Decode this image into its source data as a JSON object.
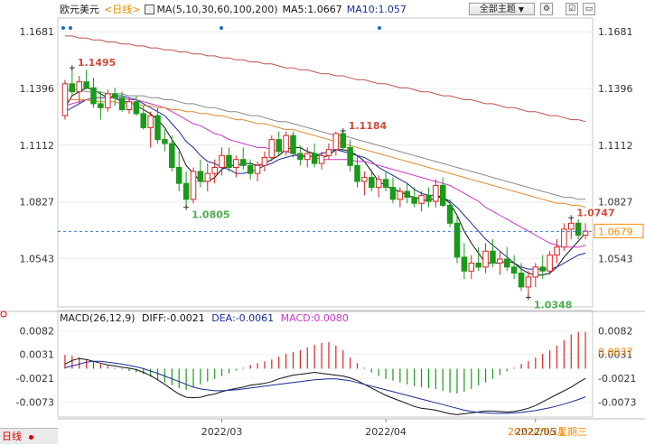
{
  "header": {
    "symbol": "欧元美元",
    "period_link": "<日线>",
    "ma_label": "MA(5,10,30,60,100,200)",
    "ma5": "MA5:1.0667",
    "ma10": "MA10:1.057",
    "theme_button": "全部主题",
    "theme_arrow": "▼"
  },
  "price_axis": {
    "ticks": [
      "1.1681",
      "1.1396",
      "1.1112",
      "1.0827",
      "1.0543"
    ],
    "current_price": "1.0679"
  },
  "annotations": {
    "high1": "1.1495",
    "high2": "1.1184",
    "low1": "1.0805",
    "low2": "1.0348",
    "high3": "1.0747"
  },
  "macd": {
    "label": "MACD(26,12,9)",
    "diff": "DIFF:-0.0021",
    "dea": "DEA:-0.0061",
    "macd": "MACD:0.0080",
    "ticks": [
      "0.0082",
      "0.0031",
      "-0.0021",
      "-0.0073"
    ],
    "right_value": "0.0037"
  },
  "xaxis": {
    "labels": [
      "2022/03",
      "2022/04",
      "2022/05"
    ],
    "cursor_date": "2022/05/11",
    "cursor_weekday": "星期三"
  },
  "bottom": {
    "period": "日线"
  },
  "colors": {
    "up": "#d22",
    "down": "#1a9a1a",
    "ma5": "#111111",
    "ma10": "#1a2a99",
    "ma30": "#cc33cc",
    "ma60": "#888888",
    "ma100": "#e08a2a",
    "ma200": "#c0504d",
    "accent": "#ff8a00"
  },
  "chart_data": {
    "type": "candlestick",
    "title": "",
    "ylim": [
      1.03,
      1.175
    ],
    "candles": [
      [
        1.126,
        1.144,
        1.124,
        1.142
      ],
      [
        1.142,
        1.15,
        1.136,
        1.138
      ],
      [
        1.138,
        1.146,
        1.132,
        1.143
      ],
      [
        1.143,
        1.149,
        1.139,
        1.14
      ],
      [
        1.14,
        1.145,
        1.13,
        1.132
      ],
      [
        1.132,
        1.138,
        1.124,
        1.13
      ],
      [
        1.13,
        1.139,
        1.128,
        1.137
      ],
      [
        1.137,
        1.14,
        1.131,
        1.135
      ],
      [
        1.135,
        1.138,
        1.128,
        1.129
      ],
      [
        1.129,
        1.135,
        1.127,
        1.133
      ],
      [
        1.133,
        1.136,
        1.126,
        1.127
      ],
      [
        1.127,
        1.131,
        1.119,
        1.12
      ],
      [
        1.12,
        1.128,
        1.11,
        1.126
      ],
      [
        1.126,
        1.13,
        1.112,
        1.114
      ],
      [
        1.114,
        1.119,
        1.108,
        1.112
      ],
      [
        1.112,
        1.116,
        1.098,
        1.1
      ],
      [
        1.1,
        1.108,
        1.088,
        1.092
      ],
      [
        1.092,
        1.098,
        1.08,
        1.084
      ],
      [
        1.084,
        1.1,
        1.082,
        1.098
      ],
      [
        1.098,
        1.104,
        1.09,
        1.093
      ],
      [
        1.093,
        1.102,
        1.088,
        1.097
      ],
      [
        1.097,
        1.104,
        1.092,
        1.1
      ],
      [
        1.1,
        1.11,
        1.096,
        1.106
      ],
      [
        1.106,
        1.11,
        1.098,
        1.1
      ],
      [
        1.1,
        1.106,
        1.095,
        1.104
      ],
      [
        1.104,
        1.11,
        1.099,
        1.101
      ],
      [
        1.101,
        1.104,
        1.094,
        1.097
      ],
      [
        1.097,
        1.103,
        1.093,
        1.101
      ],
      [
        1.101,
        1.108,
        1.098,
        1.105
      ],
      [
        1.105,
        1.116,
        1.103,
        1.114
      ],
      [
        1.114,
        1.118,
        1.106,
        1.108
      ],
      [
        1.108,
        1.118,
        1.106,
        1.116
      ],
      [
        1.116,
        1.118,
        1.105,
        1.107
      ],
      [
        1.107,
        1.111,
        1.101,
        1.104
      ],
      [
        1.104,
        1.11,
        1.1,
        1.107
      ],
      [
        1.107,
        1.112,
        1.1,
        1.102
      ],
      [
        1.102,
        1.108,
        1.099,
        1.106
      ],
      [
        1.106,
        1.112,
        1.104,
        1.109
      ],
      [
        1.109,
        1.118,
        1.106,
        1.117
      ],
      [
        1.117,
        1.1184,
        1.108,
        1.11
      ],
      [
        1.11,
        1.114,
        1.098,
        1.101
      ],
      [
        1.101,
        1.106,
        1.09,
        1.093
      ],
      [
        1.093,
        1.098,
        1.086,
        1.095
      ],
      [
        1.095,
        1.099,
        1.088,
        1.09
      ],
      [
        1.09,
        1.096,
        1.085,
        1.094
      ],
      [
        1.094,
        1.098,
        1.088,
        1.09
      ],
      [
        1.09,
        1.095,
        1.082,
        1.084
      ],
      [
        1.084,
        1.09,
        1.08,
        1.088
      ],
      [
        1.088,
        1.092,
        1.082,
        1.085
      ],
      [
        1.085,
        1.09,
        1.08,
        1.082
      ],
      [
        1.082,
        1.088,
        1.078,
        1.086
      ],
      [
        1.086,
        1.09,
        1.08,
        1.083
      ],
      [
        1.083,
        1.094,
        1.08,
        1.091
      ],
      [
        1.091,
        1.095,
        1.08,
        1.081
      ],
      [
        1.081,
        1.084,
        1.07,
        1.072
      ],
      [
        1.072,
        1.076,
        1.052,
        1.055
      ],
      [
        1.055,
        1.062,
        1.044,
        1.048
      ],
      [
        1.048,
        1.056,
        1.044,
        1.052
      ],
      [
        1.052,
        1.06,
        1.048,
        1.05
      ],
      [
        1.05,
        1.062,
        1.047,
        1.058
      ],
      [
        1.058,
        1.064,
        1.05,
        1.052
      ],
      [
        1.052,
        1.058,
        1.046,
        1.054
      ],
      [
        1.054,
        1.06,
        1.048,
        1.05
      ],
      [
        1.05,
        1.056,
        1.044,
        1.047
      ],
      [
        1.047,
        1.052,
        1.038,
        1.04
      ],
      [
        1.04,
        1.048,
        1.0348,
        1.045
      ],
      [
        1.045,
        1.052,
        1.04,
        1.05
      ],
      [
        1.05,
        1.056,
        1.044,
        1.048
      ],
      [
        1.048,
        1.058,
        1.046,
        1.056
      ],
      [
        1.056,
        1.064,
        1.052,
        1.06
      ],
      [
        1.06,
        1.072,
        1.058,
        1.069
      ],
      [
        1.069,
        1.0747,
        1.064,
        1.072
      ],
      [
        1.072,
        1.074,
        1.064,
        1.066
      ],
      [
        1.066,
        1.072,
        1.064,
        1.068
      ]
    ],
    "series": [
      {
        "name": "MA5",
        "values": [
          1.13,
          1.136,
          1.138,
          1.14,
          1.139,
          1.137,
          1.135,
          1.135,
          1.133,
          1.133,
          1.131,
          1.129,
          1.127,
          1.124,
          1.12,
          1.114,
          1.109,
          1.101,
          1.097,
          1.093,
          1.093,
          1.095,
          1.099,
          1.101,
          1.101,
          1.102,
          1.102,
          1.101,
          1.102,
          1.104,
          1.106,
          1.109,
          1.11,
          1.11,
          1.108,
          1.107,
          1.105,
          1.106,
          1.109,
          1.109,
          1.108,
          1.106,
          1.103,
          1.098,
          1.093,
          1.091,
          1.089,
          1.088,
          1.086,
          1.085,
          1.084,
          1.083,
          1.085,
          1.085,
          1.082,
          1.076,
          1.068,
          1.062,
          1.057,
          1.052,
          1.052,
          1.052,
          1.053,
          1.052,
          1.049,
          1.047,
          1.046,
          1.046,
          1.047,
          1.05,
          1.055,
          1.059,
          1.063,
          1.067
        ]
      },
      {
        "name": "MA10",
        "values": [
          1.128,
          1.13,
          1.132,
          1.134,
          1.135,
          1.135,
          1.135,
          1.136,
          1.136,
          1.135,
          1.134,
          1.132,
          1.13,
          1.128,
          1.126,
          1.122,
          1.118,
          1.113,
          1.11,
          1.106,
          1.103,
          1.102,
          1.1,
          1.099,
          1.097,
          1.097,
          1.098,
          1.099,
          1.101,
          1.102,
          1.104,
          1.105,
          1.106,
          1.106,
          1.105,
          1.106,
          1.107,
          1.108,
          1.109,
          1.108,
          1.107,
          1.106,
          1.105,
          1.103,
          1.1,
          1.098,
          1.096,
          1.094,
          1.092,
          1.089,
          1.087,
          1.086,
          1.086,
          1.085,
          1.083,
          1.08,
          1.076,
          1.072,
          1.068,
          1.064,
          1.061,
          1.058,
          1.055,
          1.052,
          1.05,
          1.049,
          1.049,
          1.049,
          1.049,
          1.05,
          1.052,
          1.054,
          1.056,
          1.057
        ]
      },
      {
        "name": "MA30",
        "values": [
          1.131,
          1.132,
          1.133,
          1.134,
          1.135,
          1.135,
          1.135,
          1.135,
          1.135,
          1.134,
          1.134,
          1.133,
          1.132,
          1.131,
          1.13,
          1.128,
          1.126,
          1.124,
          1.122,
          1.121,
          1.119,
          1.117,
          1.116,
          1.114,
          1.113,
          1.112,
          1.111,
          1.11,
          1.11,
          1.109,
          1.108,
          1.108,
          1.107,
          1.106,
          1.106,
          1.105,
          1.104,
          1.104,
          1.104,
          1.104,
          1.104,
          1.103,
          1.103,
          1.102,
          1.101,
          1.1,
          1.099,
          1.098,
          1.097,
          1.096,
          1.095,
          1.094,
          1.093,
          1.092,
          1.091,
          1.089,
          1.087,
          1.085,
          1.083,
          1.08,
          1.078,
          1.076,
          1.074,
          1.072,
          1.07,
          1.068,
          1.066,
          1.064,
          1.062,
          1.061,
          1.06,
          1.06,
          1.06,
          1.061
        ]
      },
      {
        "name": "MA60",
        "values": [
          1.139,
          1.139,
          1.139,
          1.138,
          1.138,
          1.138,
          1.137,
          1.137,
          1.137,
          1.136,
          1.136,
          1.136,
          1.135,
          1.135,
          1.134,
          1.134,
          1.133,
          1.132,
          1.132,
          1.131,
          1.13,
          1.13,
          1.129,
          1.128,
          1.128,
          1.127,
          1.126,
          1.126,
          1.125,
          1.124,
          1.123,
          1.123,
          1.122,
          1.121,
          1.12,
          1.119,
          1.118,
          1.117,
          1.116,
          1.116,
          1.115,
          1.114,
          1.113,
          1.112,
          1.111,
          1.11,
          1.109,
          1.108,
          1.107,
          1.106,
          1.105,
          1.104,
          1.103,
          1.102,
          1.101,
          1.1,
          1.099,
          1.098,
          1.097,
          1.096,
          1.095,
          1.094,
          1.093,
          1.092,
          1.091,
          1.09,
          1.089,
          1.088,
          1.087,
          1.086,
          1.085,
          1.085,
          1.084,
          1.084
        ]
      },
      {
        "name": "MA100",
        "values": [
          1.134,
          1.134,
          1.134,
          1.134,
          1.133,
          1.133,
          1.133,
          1.133,
          1.132,
          1.132,
          1.132,
          1.131,
          1.131,
          1.13,
          1.13,
          1.129,
          1.129,
          1.128,
          1.128,
          1.127,
          1.127,
          1.126,
          1.126,
          1.125,
          1.124,
          1.124,
          1.123,
          1.122,
          1.122,
          1.121,
          1.12,
          1.119,
          1.119,
          1.118,
          1.117,
          1.116,
          1.115,
          1.114,
          1.113,
          1.112,
          1.111,
          1.11,
          1.109,
          1.108,
          1.107,
          1.106,
          1.105,
          1.104,
          1.103,
          1.102,
          1.101,
          1.1,
          1.099,
          1.098,
          1.097,
          1.096,
          1.095,
          1.094,
          1.093,
          1.092,
          1.091,
          1.09,
          1.089,
          1.088,
          1.087,
          1.086,
          1.085,
          1.084,
          1.083,
          1.082,
          1.082,
          1.081,
          1.081,
          1.08
        ]
      },
      {
        "name": "MA200",
        "values": [
          1.166,
          1.166,
          1.165,
          1.165,
          1.164,
          1.164,
          1.163,
          1.163,
          1.162,
          1.162,
          1.161,
          1.161,
          1.16,
          1.16,
          1.159,
          1.159,
          1.158,
          1.158,
          1.157,
          1.157,
          1.156,
          1.156,
          1.155,
          1.155,
          1.154,
          1.154,
          1.153,
          1.153,
          1.152,
          1.152,
          1.151,
          1.15,
          1.15,
          1.149,
          1.149,
          1.148,
          1.147,
          1.147,
          1.146,
          1.146,
          1.145,
          1.144,
          1.144,
          1.143,
          1.142,
          1.142,
          1.141,
          1.14,
          1.14,
          1.139,
          1.138,
          1.138,
          1.137,
          1.136,
          1.136,
          1.135,
          1.134,
          1.134,
          1.133,
          1.132,
          1.132,
          1.131,
          1.13,
          1.13,
          1.129,
          1.128,
          1.128,
          1.127,
          1.126,
          1.126,
          1.125,
          1.124,
          1.124,
          1.123
        ]
      }
    ],
    "macd_ylim": [
      -0.0105,
      0.0095
    ],
    "macd_hist": [
      0.003,
      0.0028,
      0.0025,
      0.002,
      0.0015,
      0.001,
      0.0006,
      0.0002,
      -0.0002,
      -0.0005,
      -0.0008,
      -0.0012,
      -0.0018,
      -0.0024,
      -0.003,
      -0.0036,
      -0.0042,
      -0.0046,
      -0.004,
      -0.0034,
      -0.0028,
      -0.0022,
      -0.0016,
      -0.001,
      -0.0004,
      0.0002,
      0.0008,
      0.0012,
      0.0016,
      0.002,
      0.0026,
      0.0032,
      0.0036,
      0.004,
      0.0046,
      0.0052,
      0.0056,
      0.0058,
      0.005,
      0.004,
      0.0024,
      0.0012,
      0.0002,
      -0.0008,
      -0.0016,
      -0.0022,
      -0.0026,
      -0.003,
      -0.0034,
      -0.0038,
      -0.004,
      -0.0042,
      -0.0044,
      -0.0048,
      -0.0052,
      -0.0054,
      -0.005,
      -0.0044,
      -0.0036,
      -0.003,
      -0.0022,
      -0.0014,
      -0.0006,
      0.0002,
      0.001,
      0.0016,
      0.0024,
      0.0032,
      0.004,
      0.005,
      0.0062,
      0.0074,
      0.008,
      0.008
    ],
    "diff": [
      0.001,
      0.0018,
      0.0022,
      0.002,
      0.0016,
      0.0012,
      0.0008,
      0.0006,
      0.0003,
      0.0001,
      -0.0002,
      -0.0008,
      -0.0015,
      -0.0024,
      -0.0034,
      -0.0045,
      -0.0055,
      -0.0062,
      -0.0063,
      -0.0062,
      -0.0058,
      -0.0055,
      -0.005,
      -0.0046,
      -0.0043,
      -0.004,
      -0.0036,
      -0.0034,
      -0.0032,
      -0.0028,
      -0.0022,
      -0.0018,
      -0.0014,
      -0.0012,
      -0.001,
      -0.0008,
      -0.001,
      -0.0012,
      -0.0014,
      -0.0016,
      -0.002,
      -0.0026,
      -0.0034,
      -0.0042,
      -0.005,
      -0.0058,
      -0.0064,
      -0.007,
      -0.0076,
      -0.0082,
      -0.0086,
      -0.0088,
      -0.009,
      -0.0094,
      -0.0098,
      -0.01,
      -0.0098,
      -0.0096,
      -0.0094,
      -0.0092,
      -0.0092,
      -0.0093,
      -0.0094,
      -0.0093,
      -0.009,
      -0.0086,
      -0.008,
      -0.0072,
      -0.0064,
      -0.0056,
      -0.0048,
      -0.004,
      -0.003,
      -0.0021
    ],
    "dea": [
      0.0002,
      0.0006,
      0.001,
      0.0014,
      0.0016,
      0.0016,
      0.0014,
      0.0012,
      0.001,
      0.0007,
      0.0004,
      0.0,
      -0.0005,
      -0.001,
      -0.0016,
      -0.0022,
      -0.0028,
      -0.0034,
      -0.004,
      -0.0044,
      -0.0046,
      -0.0048,
      -0.0048,
      -0.0047,
      -0.0046,
      -0.0044,
      -0.0042,
      -0.004,
      -0.0038,
      -0.0036,
      -0.0034,
      -0.0032,
      -0.003,
      -0.0028,
      -0.0026,
      -0.0024,
      -0.0023,
      -0.0022,
      -0.0022,
      -0.0024,
      -0.0026,
      -0.003,
      -0.0034,
      -0.0038,
      -0.0042,
      -0.0046,
      -0.005,
      -0.0054,
      -0.0058,
      -0.0062,
      -0.0066,
      -0.007,
      -0.0074,
      -0.0078,
      -0.0082,
      -0.0086,
      -0.009,
      -0.0093,
      -0.0095,
      -0.0096,
      -0.0097,
      -0.0097,
      -0.0097,
      -0.0096,
      -0.0095,
      -0.0093,
      -0.0091,
      -0.0088,
      -0.0085,
      -0.0081,
      -0.0077,
      -0.0072,
      -0.0067,
      -0.0061
    ]
  }
}
